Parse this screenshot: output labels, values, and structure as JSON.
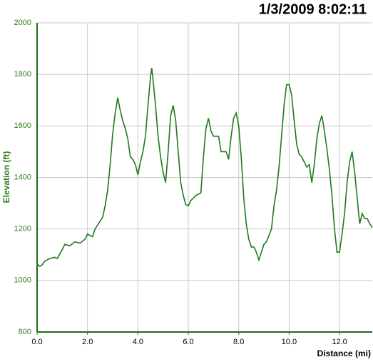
{
  "chart_data": {
    "type": "line",
    "title": "1/3/2009 8:02:11",
    "x_label": "Distance (mi)",
    "y_label": "Elevation (ft)",
    "x": [
      0.0,
      0.1,
      0.2,
      0.3,
      0.5,
      0.7,
      0.8,
      1.0,
      1.1,
      1.3,
      1.5,
      1.7,
      1.9,
      2.0,
      2.2,
      2.3,
      2.5,
      2.6,
      2.7,
      2.8,
      2.9,
      3.0,
      3.1,
      3.2,
      3.3,
      3.4,
      3.5,
      3.6,
      3.7,
      3.8,
      3.9,
      4.0,
      4.1,
      4.2,
      4.3,
      4.4,
      4.5,
      4.55,
      4.6,
      4.7,
      4.8,
      4.9,
      5.0,
      5.1,
      5.2,
      5.3,
      5.4,
      5.5,
      5.6,
      5.7,
      5.8,
      5.9,
      6.0,
      6.1,
      6.3,
      6.5,
      6.6,
      6.7,
      6.8,
      6.9,
      7.0,
      7.2,
      7.3,
      7.5,
      7.6,
      7.7,
      7.8,
      7.9,
      8.0,
      8.1,
      8.2,
      8.3,
      8.4,
      8.5,
      8.6,
      8.7,
      8.8,
      8.9,
      9.0,
      9.1,
      9.3,
      9.4,
      9.5,
      9.6,
      9.7,
      9.8,
      9.9,
      10.0,
      10.1,
      10.2,
      10.3,
      10.4,
      10.5,
      10.6,
      10.7,
      10.8,
      10.9,
      11.0,
      11.1,
      11.2,
      11.3,
      11.4,
      11.5,
      11.6,
      11.7,
      11.8,
      11.9,
      12.0,
      12.1,
      12.2,
      12.3,
      12.4,
      12.5,
      12.6,
      12.7,
      12.8,
      12.9,
      13.0,
      13.1,
      13.2,
      13.3
    ],
    "series": [
      {
        "color": "#1f7a1a",
        "values": [
          1065,
          1055,
          1060,
          1075,
          1085,
          1090,
          1085,
          1120,
          1140,
          1135,
          1150,
          1145,
          1160,
          1180,
          1170,
          1200,
          1230,
          1245,
          1290,
          1350,
          1450,
          1570,
          1650,
          1710,
          1660,
          1620,
          1590,
          1550,
          1480,
          1470,
          1450,
          1410,
          1460,
          1500,
          1560,
          1680,
          1790,
          1825,
          1780,
          1680,
          1560,
          1480,
          1420,
          1380,
          1500,
          1640,
          1680,
          1620,
          1500,
          1380,
          1330,
          1295,
          1290,
          1310,
          1330,
          1340,
          1480,
          1590,
          1630,
          1580,
          1560,
          1560,
          1500,
          1500,
          1470,
          1560,
          1630,
          1650,
          1600,
          1480,
          1320,
          1220,
          1160,
          1130,
          1130,
          1110,
          1080,
          1110,
          1140,
          1150,
          1200,
          1290,
          1350,
          1440,
          1560,
          1680,
          1760,
          1760,
          1720,
          1620,
          1530,
          1490,
          1480,
          1460,
          1440,
          1450,
          1380,
          1450,
          1550,
          1610,
          1640,
          1580,
          1510,
          1430,
          1330,
          1200,
          1110,
          1110,
          1180,
          1260,
          1380,
          1460,
          1500,
          1420,
          1320,
          1220,
          1260,
          1240,
          1240,
          1220,
          1205
        ]
      }
    ],
    "xlim": [
      0,
      13.3
    ],
    "ylim": [
      800,
      2000
    ],
    "xticks": [
      {
        "value": 0,
        "label": "0.0"
      },
      {
        "value": 2,
        "label": "2.0"
      },
      {
        "value": 4,
        "label": "4.0"
      },
      {
        "value": 6,
        "label": "6.0"
      },
      {
        "value": 8,
        "label": "8.0"
      },
      {
        "value": 10,
        "label": "10.0"
      },
      {
        "value": 12,
        "label": "12.0"
      }
    ],
    "yticks": [
      800,
      1000,
      1200,
      1400,
      1600,
      1800,
      2000
    ],
    "grid": true
  }
}
